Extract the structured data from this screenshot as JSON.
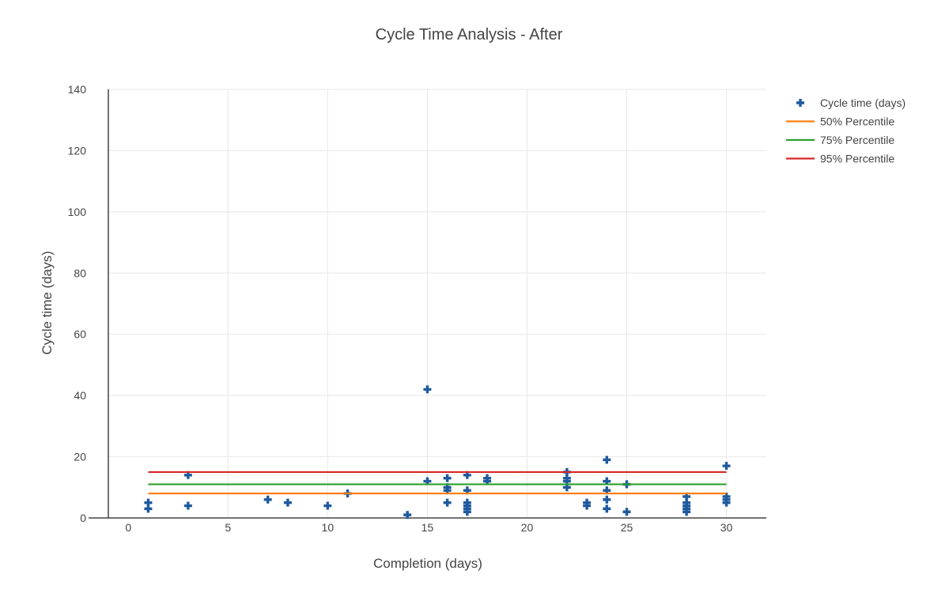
{
  "chart_data": {
    "type": "scatter",
    "title": "Cycle Time Analysis - After",
    "xlabel": "Completion (days)",
    "ylabel": "Cycle time (days)",
    "xlim": [
      -1,
      32
    ],
    "ylim": [
      0,
      140
    ],
    "x_ticks": [
      "0",
      "5",
      "10",
      "15",
      "20",
      "25",
      "30"
    ],
    "y_ticks": [
      "0",
      "20",
      "40",
      "60",
      "80",
      "100",
      "120",
      "140"
    ],
    "grid": true,
    "legend_position": "top-right",
    "series": [
      {
        "name": "Cycle time (days)",
        "mode": "markers",
        "marker": "cross",
        "color": "#1f5a9e",
        "points": [
          [
            1,
            3
          ],
          [
            1,
            5
          ],
          [
            3,
            4
          ],
          [
            3,
            14
          ],
          [
            7,
            6
          ],
          [
            8,
            5
          ],
          [
            10,
            4
          ],
          [
            11,
            8
          ],
          [
            14,
            1
          ],
          [
            15,
            12
          ],
          [
            15,
            42
          ],
          [
            16,
            5
          ],
          [
            16,
            9
          ],
          [
            16,
            10
          ],
          [
            16,
            13
          ],
          [
            17,
            2
          ],
          [
            17,
            3
          ],
          [
            17,
            4
          ],
          [
            17,
            5
          ],
          [
            17,
            9
          ],
          [
            17,
            14
          ],
          [
            18,
            12
          ],
          [
            18,
            13
          ],
          [
            22,
            10
          ],
          [
            22,
            12
          ],
          [
            22,
            13
          ],
          [
            22,
            15
          ],
          [
            23,
            4
          ],
          [
            23,
            5
          ],
          [
            24,
            3
          ],
          [
            24,
            6
          ],
          [
            24,
            9
          ],
          [
            24,
            12
          ],
          [
            24,
            19
          ],
          [
            25,
            2
          ],
          [
            25,
            11
          ],
          [
            28,
            2
          ],
          [
            28,
            3
          ],
          [
            28,
            4
          ],
          [
            28,
            5
          ],
          [
            28,
            7
          ],
          [
            30,
            5
          ],
          [
            30,
            6
          ],
          [
            30,
            7
          ],
          [
            30,
            17
          ]
        ]
      },
      {
        "name": "50% Percentile",
        "mode": "line",
        "color": "#ff7f0e",
        "points": [
          [
            1,
            8
          ],
          [
            30,
            8
          ]
        ]
      },
      {
        "name": "75% Percentile",
        "mode": "line",
        "color": "#2ca02c",
        "points": [
          [
            1,
            11
          ],
          [
            30,
            11
          ]
        ]
      },
      {
        "name": "95% Percentile",
        "mode": "line",
        "color": "#d62728",
        "points": [
          [
            1,
            15
          ],
          [
            30,
            15
          ]
        ]
      }
    ]
  }
}
